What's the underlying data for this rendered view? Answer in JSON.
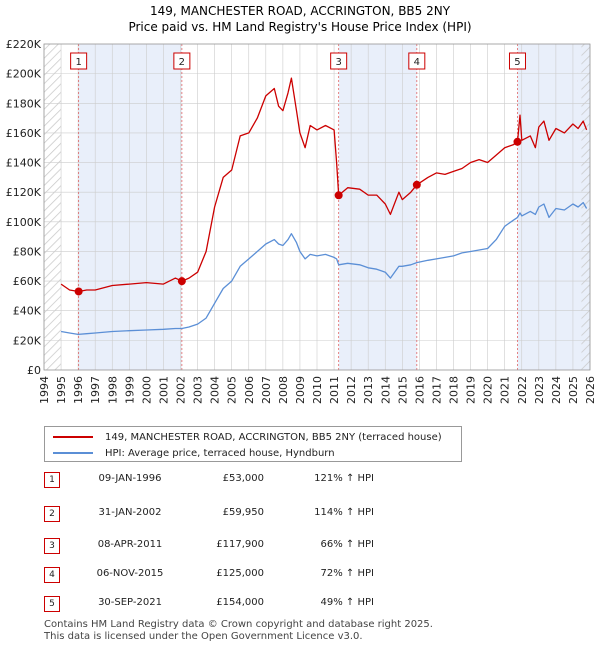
{
  "chart_data": {
    "type": "line",
    "title": "149, MANCHESTER ROAD, ACCRINGTON, BB5 2NY",
    "subtitle": "Price paid vs. HM Land Registry's House Price Index (HPI)",
    "xlim": [
      1994,
      2026
    ],
    "ylim": [
      0,
      220000
    ],
    "x_ticks": [
      "1994",
      "1995",
      "1996",
      "1997",
      "1998",
      "1999",
      "2000",
      "2001",
      "2002",
      "2003",
      "2004",
      "2005",
      "2006",
      "2007",
      "2008",
      "2009",
      "2010",
      "2011",
      "2012",
      "2013",
      "2014",
      "2015",
      "2016",
      "2017",
      "2018",
      "2019",
      "2020",
      "2021",
      "2022",
      "2023",
      "2024",
      "2025",
      "2026"
    ],
    "y_ticks": [
      {
        "value": 0,
        "label": "£0"
      },
      {
        "value": 20000,
        "label": "£20K"
      },
      {
        "value": 40000,
        "label": "£40K"
      },
      {
        "value": 60000,
        "label": "£60K"
      },
      {
        "value": 80000,
        "label": "£80K"
      },
      {
        "value": 100000,
        "label": "£100K"
      },
      {
        "value": 120000,
        "label": "£120K"
      },
      {
        "value": 140000,
        "label": "£140K"
      },
      {
        "value": 160000,
        "label": "£160K"
      },
      {
        "value": 180000,
        "label": "£180K"
      },
      {
        "value": 200000,
        "label": "£200K"
      },
      {
        "value": 220000,
        "label": "£220K"
      }
    ],
    "series": [
      {
        "name": "149, MANCHESTER ROAD, ACCRINGTON, BB5 2NY (terraced house)",
        "color": "#cc0000",
        "points": [
          [
            1995.0,
            58000
          ],
          [
            1995.5,
            54000
          ],
          [
            1996.03,
            53000
          ],
          [
            1996.5,
            54000
          ],
          [
            1997.0,
            54000
          ],
          [
            1998.0,
            57000
          ],
          [
            1999.0,
            58000
          ],
          [
            2000.0,
            59000
          ],
          [
            2001.0,
            58000
          ],
          [
            2001.7,
            62000
          ],
          [
            2002.08,
            59950
          ],
          [
            2002.5,
            62000
          ],
          [
            2003.0,
            66000
          ],
          [
            2003.5,
            80000
          ],
          [
            2004.0,
            110000
          ],
          [
            2004.5,
            130000
          ],
          [
            2005.0,
            135000
          ],
          [
            2005.5,
            158000
          ],
          [
            2006.0,
            160000
          ],
          [
            2006.5,
            170000
          ],
          [
            2007.0,
            185000
          ],
          [
            2007.5,
            190000
          ],
          [
            2007.75,
            178000
          ],
          [
            2008.0,
            175000
          ],
          [
            2008.3,
            187000
          ],
          [
            2008.5,
            197000
          ],
          [
            2008.8,
            175000
          ],
          [
            2009.0,
            160000
          ],
          [
            2009.3,
            150000
          ],
          [
            2009.6,
            165000
          ],
          [
            2010.0,
            162000
          ],
          [
            2010.5,
            165000
          ],
          [
            2011.0,
            162000
          ],
          [
            2011.15,
            140000
          ],
          [
            2011.27,
            117900
          ],
          [
            2011.8,
            123000
          ],
          [
            2012.5,
            122000
          ],
          [
            2013.0,
            118000
          ],
          [
            2013.5,
            118000
          ],
          [
            2014.0,
            112000
          ],
          [
            2014.3,
            105000
          ],
          [
            2014.8,
            120000
          ],
          [
            2015.0,
            115000
          ],
          [
            2015.5,
            120000
          ],
          [
            2015.85,
            125000
          ],
          [
            2016.5,
            130000
          ],
          [
            2017.0,
            133000
          ],
          [
            2017.5,
            132000
          ],
          [
            2018.0,
            134000
          ],
          [
            2018.5,
            136000
          ],
          [
            2019.0,
            140000
          ],
          [
            2019.5,
            142000
          ],
          [
            2020.0,
            140000
          ],
          [
            2020.5,
            145000
          ],
          [
            2021.0,
            150000
          ],
          [
            2021.5,
            152000
          ],
          [
            2021.75,
            154000
          ],
          [
            2021.9,
            172000
          ],
          [
            2022.0,
            155000
          ],
          [
            2022.5,
            158000
          ],
          [
            2022.8,
            150000
          ],
          [
            2023.0,
            164000
          ],
          [
            2023.3,
            168000
          ],
          [
            2023.6,
            155000
          ],
          [
            2024.0,
            163000
          ],
          [
            2024.5,
            160000
          ],
          [
            2025.0,
            166000
          ],
          [
            2025.3,
            163000
          ],
          [
            2025.6,
            168000
          ],
          [
            2025.8,
            162000
          ]
        ]
      },
      {
        "name": "HPI: Average price, terraced house, Hyndburn",
        "color": "#5b8fd6",
        "points": [
          [
            1995.0,
            26000
          ],
          [
            1995.5,
            25000
          ],
          [
            1996.0,
            24000
          ],
          [
            1996.5,
            24500
          ],
          [
            1997.0,
            25000
          ],
          [
            1998.0,
            26000
          ],
          [
            1999.0,
            26500
          ],
          [
            2000.0,
            27000
          ],
          [
            2001.0,
            27500
          ],
          [
            2001.7,
            28000
          ],
          [
            2002.08,
            28000
          ],
          [
            2002.5,
            29000
          ],
          [
            2003.0,
            31000
          ],
          [
            2003.5,
            35000
          ],
          [
            2004.0,
            45000
          ],
          [
            2004.5,
            55000
          ],
          [
            2005.0,
            60000
          ],
          [
            2005.5,
            70000
          ],
          [
            2006.0,
            75000
          ],
          [
            2006.5,
            80000
          ],
          [
            2007.0,
            85000
          ],
          [
            2007.5,
            88000
          ],
          [
            2007.75,
            85000
          ],
          [
            2008.0,
            84000
          ],
          [
            2008.3,
            88000
          ],
          [
            2008.5,
            92000
          ],
          [
            2008.8,
            86000
          ],
          [
            2009.0,
            80000
          ],
          [
            2009.3,
            75000
          ],
          [
            2009.6,
            78000
          ],
          [
            2010.0,
            77000
          ],
          [
            2010.5,
            78000
          ],
          [
            2011.0,
            76000
          ],
          [
            2011.15,
            75000
          ],
          [
            2011.27,
            71000
          ],
          [
            2011.8,
            72000
          ],
          [
            2012.5,
            71000
          ],
          [
            2013.0,
            69000
          ],
          [
            2013.5,
            68000
          ],
          [
            2014.0,
            66000
          ],
          [
            2014.3,
            62000
          ],
          [
            2014.8,
            70000
          ],
          [
            2015.0,
            70000
          ],
          [
            2015.5,
            71000
          ],
          [
            2015.85,
            72500
          ],
          [
            2016.5,
            74000
          ],
          [
            2017.0,
            75000
          ],
          [
            2017.5,
            76000
          ],
          [
            2018.0,
            77000
          ],
          [
            2018.5,
            79000
          ],
          [
            2019.0,
            80000
          ],
          [
            2019.5,
            81000
          ],
          [
            2020.0,
            82000
          ],
          [
            2020.5,
            88000
          ],
          [
            2021.0,
            97000
          ],
          [
            2021.5,
            101000
          ],
          [
            2021.75,
            103000
          ],
          [
            2021.9,
            106000
          ],
          [
            2022.0,
            104000
          ],
          [
            2022.5,
            107000
          ],
          [
            2022.8,
            105000
          ],
          [
            2023.0,
            110000
          ],
          [
            2023.3,
            112000
          ],
          [
            2023.6,
            103000
          ],
          [
            2024.0,
            109000
          ],
          [
            2024.5,
            108000
          ],
          [
            2025.0,
            112000
          ],
          [
            2025.3,
            110000
          ],
          [
            2025.6,
            113000
          ],
          [
            2025.8,
            109000
          ]
        ]
      }
    ],
    "sales": [
      {
        "n": "1",
        "x": 1996.03,
        "y": 53000,
        "date": "09-JAN-1996",
        "price": "£53,000",
        "hpi": "121% ↑ HPI"
      },
      {
        "n": "2",
        "x": 2002.08,
        "y": 59950,
        "date": "31-JAN-2002",
        "price": "£59,950",
        "hpi": "114% ↑ HPI"
      },
      {
        "n": "3",
        "x": 2011.27,
        "y": 117900,
        "date": "08-APR-2011",
        "price": "£117,900",
        "hpi": "66% ↑ HPI"
      },
      {
        "n": "4",
        "x": 2015.85,
        "y": 125000,
        "date": "06-NOV-2015",
        "price": "£125,000",
        "hpi": "72% ↑ HPI"
      },
      {
        "n": "5",
        "x": 2021.75,
        "y": 154000,
        "date": "30-SEP-2021",
        "price": "£154,000",
        "hpi": "49% ↑ HPI"
      }
    ],
    "shaded_periods": [
      [
        1996.03,
        2002.08
      ],
      [
        2011.27,
        2015.85
      ],
      [
        2021.75,
        2026
      ]
    ],
    "hatched_periods": [
      [
        1994,
        1995
      ],
      [
        2025.5,
        2026
      ]
    ]
  },
  "legend": {
    "property_label": "149, MANCHESTER ROAD, ACCRINGTON, BB5 2NY (terraced house)",
    "hpi_label": "HPI: Average price, terraced house, Hyndburn"
  },
  "footer": {
    "line1": "Contains HM Land Registry data © Crown copyright and database right 2025.",
    "line2": "This data is licensed under the Open Government Licence v3.0."
  },
  "colors": {
    "property": "#cc0000",
    "hpi": "#5b8fd6",
    "shade": "#e9effa",
    "grid": "#cccccc"
  }
}
